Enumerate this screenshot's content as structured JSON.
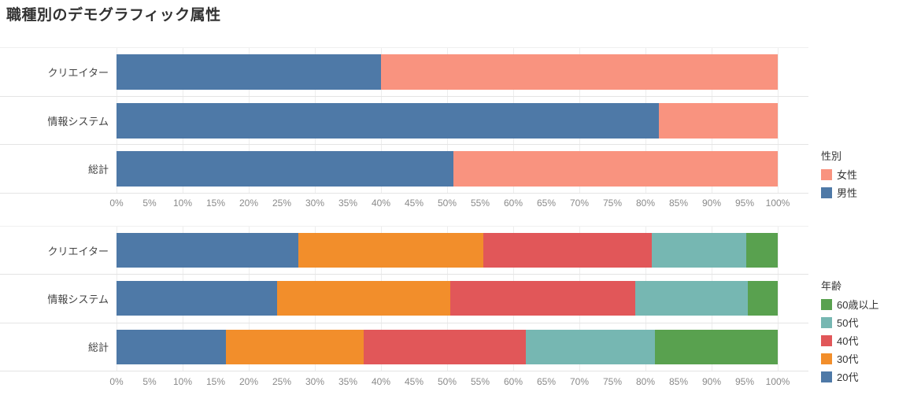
{
  "title": "職種別のデモグラフィック属性",
  "axis_ticks": [
    "0%",
    "5%",
    "10%",
    "15%",
    "20%",
    "25%",
    "30%",
    "35%",
    "40%",
    "45%",
    "50%",
    "55%",
    "60%",
    "65%",
    "70%",
    "75%",
    "80%",
    "85%",
    "90%",
    "95%",
    "100%"
  ],
  "gridline_percents": [
    0,
    10,
    20,
    30,
    40,
    50,
    60,
    70,
    80,
    90,
    100
  ],
  "chart_data": [
    {
      "type": "bar",
      "orientation": "horizontal",
      "stacked": true,
      "unit": "percent",
      "xlim": [
        0,
        100
      ],
      "tick_step": 5,
      "grid": true,
      "categories": [
        "クリエイター",
        "情報システム",
        "総計"
      ],
      "series": [
        {
          "name": "男性",
          "color": "#4E79A7",
          "values": [
            40,
            82,
            51
          ]
        },
        {
          "name": "女性",
          "color": "#F9937F",
          "values": [
            60,
            18,
            49
          ]
        }
      ],
      "legend": {
        "title": "性別",
        "position": "right",
        "items": [
          {
            "label": "女性",
            "color": "#F9937F"
          },
          {
            "label": "男性",
            "color": "#4E79A7"
          }
        ]
      }
    },
    {
      "type": "bar",
      "orientation": "horizontal",
      "stacked": true,
      "unit": "percent",
      "xlim": [
        0,
        100
      ],
      "tick_step": 5,
      "grid": true,
      "categories": [
        "クリエイター",
        "情報システム",
        "総計"
      ],
      "series": [
        {
          "name": "20代",
          "color": "#4E79A7",
          "values": [
            27.5,
            24.3,
            16.6
          ]
        },
        {
          "name": "30代",
          "color": "#F28E2B",
          "values": [
            28.0,
            26.2,
            20.8
          ]
        },
        {
          "name": "40代",
          "color": "#E15759",
          "values": [
            25.5,
            28.0,
            24.5
          ]
        },
        {
          "name": "50代",
          "color": "#76B7B2",
          "values": [
            14.2,
            17.0,
            19.5
          ]
        },
        {
          "name": "60歳以上",
          "color": "#59A14F",
          "values": [
            4.8,
            4.5,
            18.6
          ]
        }
      ],
      "legend": {
        "title": "年齢",
        "position": "right",
        "items": [
          {
            "label": "60歳以上",
            "color": "#59A14F"
          },
          {
            "label": "50代",
            "color": "#76B7B2"
          },
          {
            "label": "40代",
            "color": "#E15759"
          },
          {
            "label": "30代",
            "color": "#F28E2B"
          },
          {
            "label": "20代",
            "color": "#4E79A7"
          }
        ]
      }
    }
  ]
}
